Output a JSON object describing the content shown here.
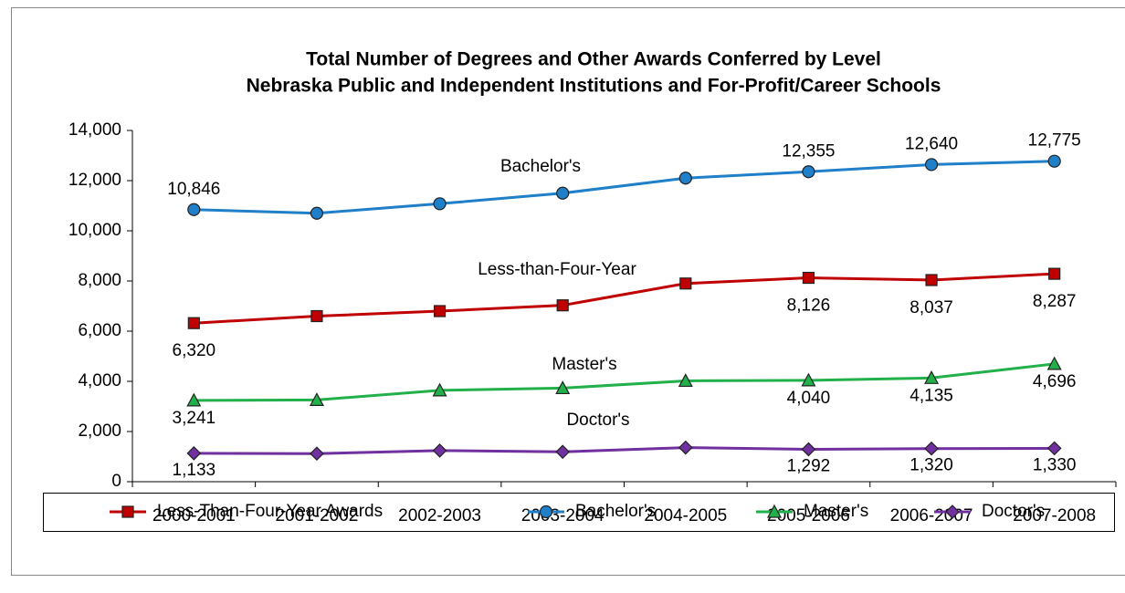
{
  "chart_data": {
    "type": "line",
    "title": "Total Number of Degrees and Other Awards Conferred by Level",
    "subtitle": "Nebraska Public and Independent Institutions and For-Profit/Career Schools",
    "categories": [
      "2000-2001",
      "2001-2002",
      "2002-2003",
      "2003-2004",
      "2004-2005",
      "2005-2006",
      "2006-2007",
      "2007-2008"
    ],
    "series": [
      {
        "name": "Less-Than-Four-Year Awards",
        "color": "#c00000",
        "marker": "square",
        "values": [
          6320,
          6600,
          6800,
          7030,
          7900,
          8126,
          8037,
          8287
        ],
        "value_labels": [
          "6,320",
          null,
          null,
          null,
          null,
          "8,126",
          "8,037",
          "8,287"
        ]
      },
      {
        "name": "Bachelor's",
        "color": "#1f7fc8",
        "marker": "circle",
        "values": [
          10846,
          10700,
          11080,
          11500,
          12100,
          12355,
          12640,
          12775
        ],
        "value_labels": [
          "10,846",
          null,
          null,
          null,
          null,
          "12,355",
          "12,640",
          "12,775"
        ]
      },
      {
        "name": "Master's",
        "color": "#22b04b",
        "marker": "triangle",
        "values": [
          3241,
          3260,
          3640,
          3730,
          4020,
          4040,
          4135,
          4696
        ],
        "value_labels": [
          "3,241",
          null,
          null,
          null,
          null,
          "4,040",
          "4,135",
          "4,696"
        ]
      },
      {
        "name": "Doctor's",
        "color": "#7030a0",
        "marker": "diamond",
        "values": [
          1133,
          1120,
          1240,
          1190,
          1360,
          1292,
          1320,
          1330
        ],
        "value_labels": [
          "1,133",
          null,
          null,
          null,
          null,
          "1,292",
          "1,320",
          "1,330"
        ]
      }
    ],
    "annotations": [
      "Less-than-Four-Year",
      "Bachelor's",
      "Master's",
      "Doctor's"
    ],
    "ylim": [
      0,
      14000
    ],
    "yticks": [
      0,
      {
        "value": 2000,
        "label": "2,000"
      },
      {
        "value": 4000,
        "label": "4,000"
      },
      {
        "value": 6000,
        "label": "6,000"
      },
      {
        "value": 8000,
        "label": "8,000"
      },
      {
        "value": 10000,
        "label": "10,000"
      },
      {
        "value": 12000,
        "label": "12,000"
      },
      {
        "value": 14000,
        "label": "14,000"
      }
    ],
    "legend": "bottom"
  }
}
